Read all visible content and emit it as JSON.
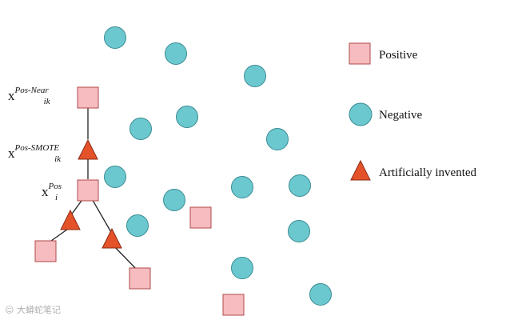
{
  "colors": {
    "positive_fill": "#f6bcc0",
    "positive_stroke": "#b04a4a",
    "negative_fill": "#6cc8cf",
    "negative_stroke": "#3a8c93",
    "artificial_fill": "#e4522a",
    "artificial_stroke": "#8c2a12",
    "line": "#222222"
  },
  "legend": {
    "positive": "Positive",
    "negative": "Negative",
    "artificial": "Artificially invented"
  },
  "labels": {
    "near": {
      "base": "x",
      "sup": "Pos-Near",
      "sub": "ik"
    },
    "smote": {
      "base": "x",
      "sup": "Pos-SMOTE",
      "sub": "ik"
    },
    "pos": {
      "base": "x",
      "sup": "Pos",
      "sub": "i"
    }
  },
  "watermark": "☺ 大蟒蛇笔记",
  "icons": {
    "positive": "square",
    "negative": "circle",
    "artificial": "triangle"
  }
}
